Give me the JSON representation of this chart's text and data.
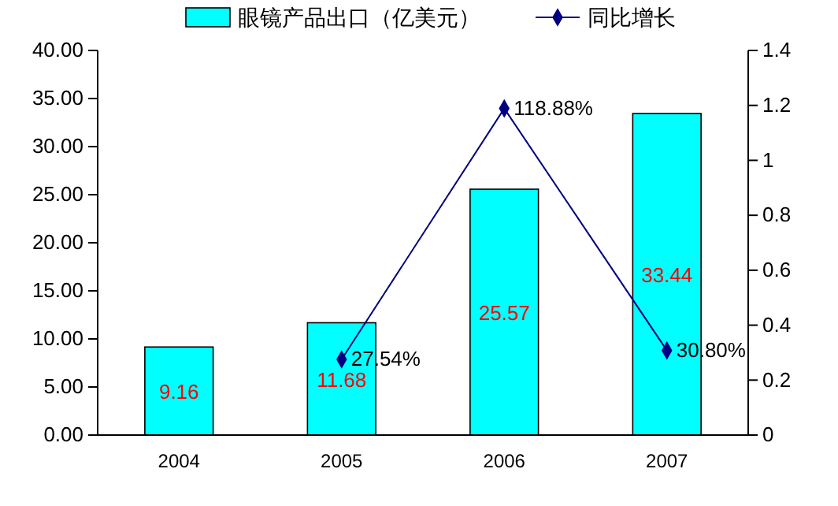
{
  "chart_data": {
    "type": "bar",
    "categories": [
      "2004",
      "2005",
      "2006",
      "2007"
    ],
    "series": [
      {
        "name": "眼镜产品出口（亿美元）",
        "color": "#00ffff",
        "values": [
          9.16,
          11.68,
          25.57,
          33.44
        ],
        "value_labels": [
          "9.16",
          "11.68",
          "25.57",
          "33.44"
        ]
      },
      {
        "name": "同比增长",
        "type": "line",
        "axis": "y2",
        "color": "#000080",
        "values": [
          null,
          0.2754,
          1.1888,
          0.308
        ],
        "value_labels": [
          null,
          "27.54%",
          "118.88%",
          "30.80%"
        ]
      }
    ],
    "ylim": [
      0,
      40
    ],
    "yticks": [
      {
        "value": 0,
        "label": "0.00"
      },
      {
        "value": 5,
        "label": "5.00"
      },
      {
        "value": 10,
        "label": "10.00"
      },
      {
        "value": 15,
        "label": "15.00"
      },
      {
        "value": 20,
        "label": "20.00"
      },
      {
        "value": 25,
        "label": "25.00"
      },
      {
        "value": 30,
        "label": "30.00"
      },
      {
        "value": 35,
        "label": "35.00"
      },
      {
        "value": 40,
        "label": "40.00"
      }
    ],
    "y2lim": [
      0,
      1.4
    ],
    "y2ticks": [
      0,
      0.2,
      0.4,
      0.6,
      0.8,
      1,
      1.2,
      1.4
    ],
    "legend": "top",
    "marker": "diamond",
    "line_style": "solid"
  }
}
